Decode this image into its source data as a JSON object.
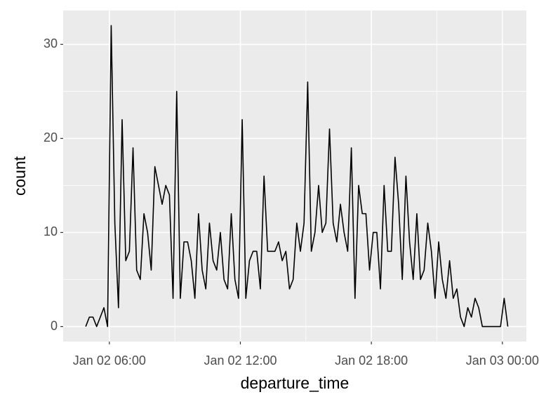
{
  "chart_data": {
    "type": "line",
    "x_label": "departure_time",
    "y_label": "count",
    "x": [
      295,
      305,
      315,
      325,
      335,
      345,
      355,
      365,
      375,
      385,
      395,
      405,
      415,
      425,
      435,
      445,
      455,
      465,
      475,
      485,
      495,
      505,
      515,
      525,
      535,
      545,
      555,
      565,
      575,
      585,
      595,
      605,
      615,
      625,
      635,
      645,
      655,
      665,
      675,
      685,
      695,
      705,
      715,
      725,
      735,
      745,
      755,
      765,
      775,
      785,
      795,
      805,
      815,
      825,
      835,
      845,
      855,
      865,
      875,
      885,
      895,
      905,
      915,
      925,
      935,
      945,
      955,
      965,
      975,
      985,
      995,
      1005,
      1015,
      1025,
      1035,
      1045,
      1055,
      1065,
      1075,
      1085,
      1095,
      1105,
      1115,
      1125,
      1135,
      1145,
      1155,
      1165,
      1175,
      1185,
      1195,
      1205,
      1215,
      1225,
      1235,
      1245,
      1255,
      1265,
      1275,
      1285,
      1295,
      1305,
      1315,
      1325,
      1335,
      1345,
      1355,
      1365,
      1375,
      1385,
      1395,
      1405,
      1415,
      1425,
      1435,
      1445,
      1455
    ],
    "series": [
      {
        "color": "#000000",
        "values": [
          0,
          1,
          1,
          0,
          1,
          2,
          0,
          32,
          11,
          2,
          22,
          7,
          8,
          19,
          6,
          5,
          12,
          10,
          6,
          17,
          15,
          13,
          15,
          14,
          3,
          25,
          3,
          9,
          9,
          7,
          3,
          12,
          6,
          4,
          11,
          7,
          6,
          10,
          5,
          4,
          12,
          5,
          3,
          22,
          3,
          7,
          8,
          8,
          4,
          16,
          8,
          8,
          8,
          9,
          7,
          8,
          4,
          5,
          11,
          8,
          11,
          26,
          8,
          10,
          15,
          10,
          11,
          21,
          11,
          9,
          13,
          10,
          8,
          19,
          3,
          15,
          12,
          12,
          6,
          10,
          10,
          4,
          15,
          8,
          8,
          18,
          13,
          5,
          16,
          9,
          5,
          12,
          5,
          6,
          11,
          8,
          3,
          9,
          5,
          3,
          7,
          3,
          4,
          1,
          0,
          2,
          1,
          3,
          2,
          0,
          0,
          0,
          0,
          0,
          0,
          3,
          0
        ]
      }
    ],
    "xlim": [
      233,
      1506
    ],
    "xticks": [
      {
        "value": 360,
        "label": "Jan 02 06:00"
      },
      {
        "value": 720,
        "label": "Jan 02 12:00"
      },
      {
        "value": 1080,
        "label": "Jan 02 18:00"
      },
      {
        "value": 1440,
        "label": "Jan 03 00:00"
      }
    ],
    "ylim": [
      -1.6,
      33.6
    ],
    "yticks": [
      0,
      10,
      20,
      30
    ],
    "grid": true
  }
}
